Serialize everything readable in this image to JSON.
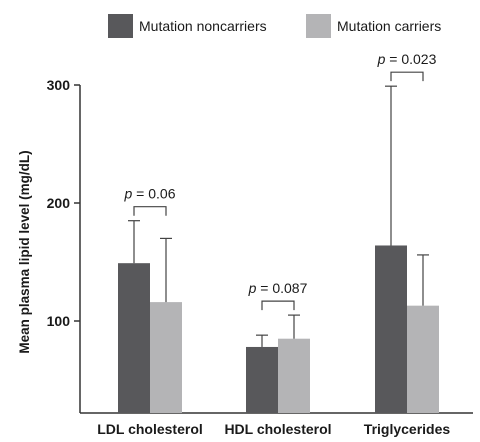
{
  "chart_data": {
    "type": "bar",
    "ylabel": "Mean plasma lipid level (mg/dL)",
    "categories": [
      "LDL cholesterol",
      "HDL cholesterol",
      "Triglycerides"
    ],
    "series": [
      {
        "name": "Mutation noncarriers",
        "color": "#58585b",
        "values": [
          149,
          78,
          164
        ],
        "error_upper": [
          185,
          88,
          299
        ]
      },
      {
        "name": "Mutation carriers",
        "color": "#b4b4b6",
        "values": [
          116,
          85,
          113
        ],
        "error_upper": [
          170,
          105,
          156
        ]
      }
    ],
    "yticks": [
      100,
      200,
      300
    ],
    "ylim": [
      55,
      325
    ],
    "legend": "top",
    "grid": false,
    "annotations": [
      {
        "category": "LDL cholesterol",
        "label_prefix": "p",
        "label_value": " = 0.06"
      },
      {
        "category": "HDL cholesterol",
        "label_prefix": "p",
        "label_value": " = 0.087"
      },
      {
        "category": "Triglycerides",
        "label_prefix": "p",
        "label_value": " = 0.023"
      }
    ]
  }
}
